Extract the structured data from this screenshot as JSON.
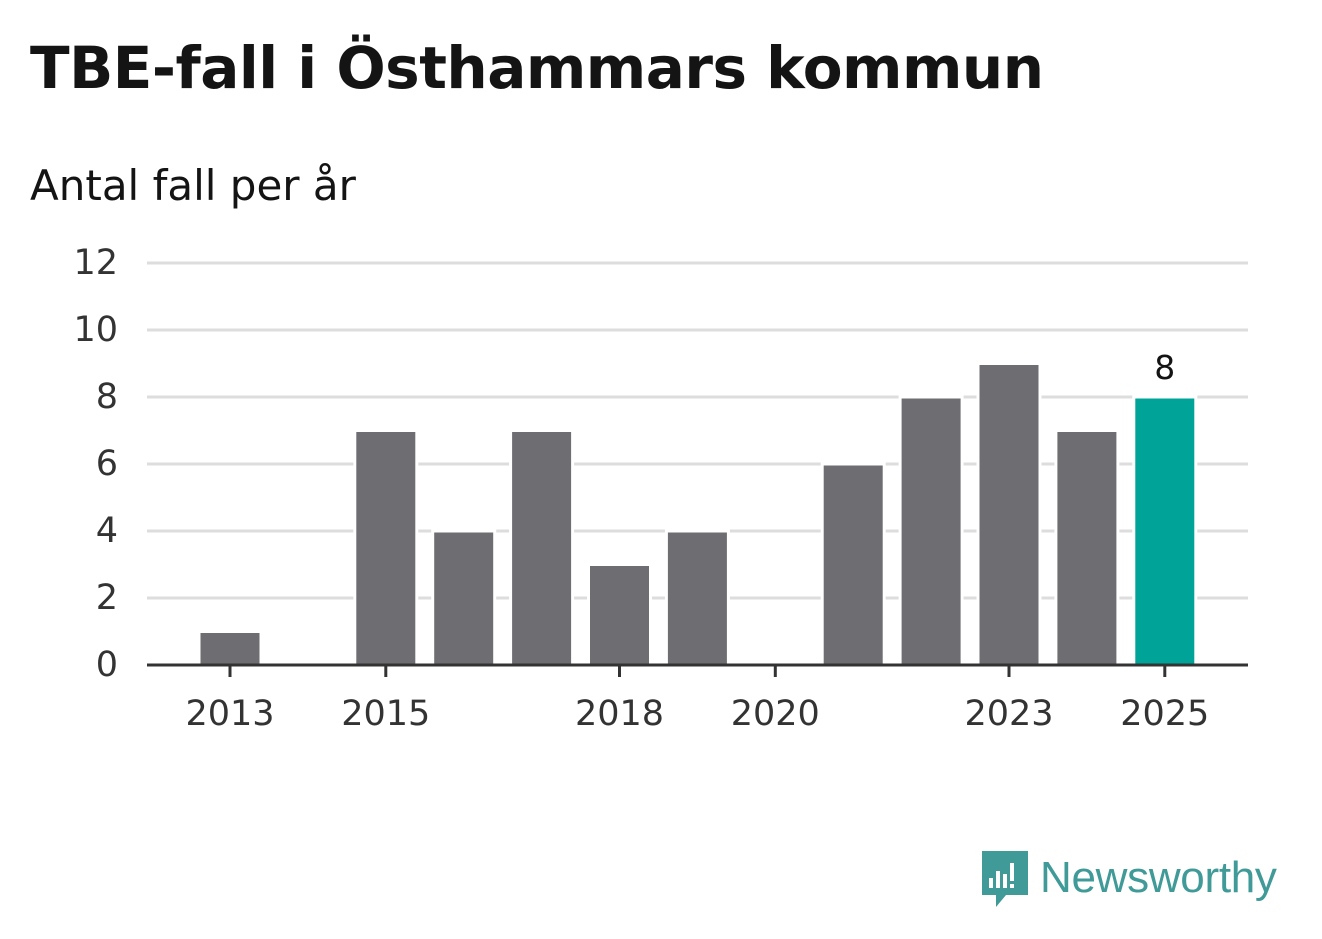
{
  "brand": {
    "name": "Newsworthy",
    "color": "#3f9a98",
    "icon": "newsworthy-logo-icon"
  },
  "colors": {
    "bar": "#6e6d72",
    "highlight": "#00a398",
    "grid": "#dddddd",
    "axis": "#333333",
    "text": "#141414"
  },
  "chart_data": {
    "type": "bar",
    "title": "TBE-fall i Östhammars kommun",
    "subtitle": "Antal fall per år",
    "xlabel": "",
    "ylabel": "",
    "categories": [
      "2013",
      "2014",
      "2015",
      "2016",
      "2017",
      "2018",
      "2019",
      "2020",
      "2021",
      "2022",
      "2023",
      "2024",
      "2025"
    ],
    "values": [
      1,
      0,
      7,
      4,
      7,
      3,
      4,
      0,
      6,
      8,
      9,
      7,
      8
    ],
    "ylim": [
      0,
      12
    ],
    "yticks": [
      0,
      2,
      4,
      6,
      8,
      10,
      12
    ],
    "xtick_labels": [
      "2013",
      "2015",
      "2018",
      "2020",
      "2023",
      "2025"
    ],
    "highlight_category": "2025",
    "data_labels": [
      {
        "category": "2025",
        "text": "8"
      }
    ],
    "grid": true,
    "legend": "none"
  }
}
